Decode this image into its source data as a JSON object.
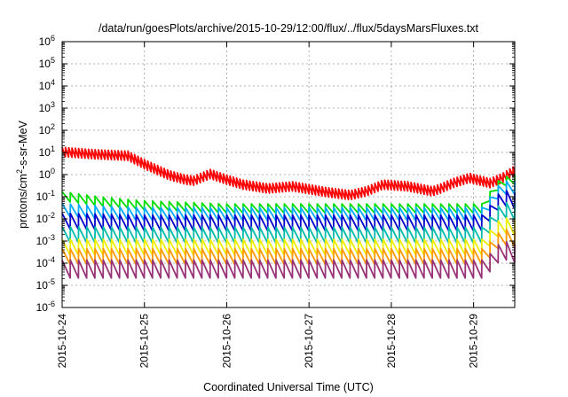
{
  "chart_data": {
    "type": "line",
    "title": "/data/run/goesPlots/archive/2015-10-29/12:00/flux/../flux/5daysMarsFluxes.txt",
    "xlabel": "Coordinated Universal Time (UTC)",
    "ylabel_base": "protons/cm",
    "ylabel_sup": "2",
    "ylabel_tail": "-s-sr-MeV",
    "y_scale": "log",
    "ylim": [
      1e-06,
      1000000.0
    ],
    "y_ticks": [
      {
        "base": "10",
        "exp": "-6",
        "value": 1e-06
      },
      {
        "base": "10",
        "exp": "-5",
        "value": 1e-05
      },
      {
        "base": "10",
        "exp": "-4",
        "value": 0.0001
      },
      {
        "base": "10",
        "exp": "-3",
        "value": 0.001
      },
      {
        "base": "10",
        "exp": "-2",
        "value": 0.01
      },
      {
        "base": "10",
        "exp": "-1",
        "value": 0.1
      },
      {
        "base": "10",
        "exp": "0",
        "value": 1
      },
      {
        "base": "10",
        "exp": "1",
        "value": 10
      },
      {
        "base": "10",
        "exp": "2",
        "value": 100
      },
      {
        "base": "10",
        "exp": "3",
        "value": 1000
      },
      {
        "base": "10",
        "exp": "4",
        "value": 10000
      },
      {
        "base": "10",
        "exp": "5",
        "value": 100000
      },
      {
        "base": "10",
        "exp": "6",
        "value": 1000000
      }
    ],
    "x_unit": "days since 2015-10-24 00:00 UTC",
    "xlim": [
      0,
      5.5
    ],
    "x_ticks": [
      {
        "label": "2015-10-24",
        "value": 0
      },
      {
        "label": "2015-10-25",
        "value": 1
      },
      {
        "label": "2015-10-26",
        "value": 2
      },
      {
        "label": "2015-10-27",
        "value": 3
      },
      {
        "label": "2015-10-28",
        "value": 4
      },
      {
        "label": "2015-10-29",
        "value": 5
      }
    ],
    "grid": true,
    "series": [
      {
        "color": "#ff0000",
        "step": 0.04,
        "sawtooth_ratio": 1.9,
        "envelope": [
          [
            0,
            9
          ],
          [
            0.4,
            7
          ],
          [
            0.8,
            6
          ],
          [
            1.0,
            2.5
          ],
          [
            1.3,
            0.8
          ],
          [
            1.5,
            0.5
          ],
          [
            1.6,
            0.45
          ],
          [
            1.8,
            0.9
          ],
          [
            2.0,
            0.5
          ],
          [
            2.2,
            0.3
          ],
          [
            2.5,
            0.2
          ],
          [
            2.8,
            0.25
          ],
          [
            3.2,
            0.14
          ],
          [
            3.5,
            0.1
          ],
          [
            3.7,
            0.15
          ],
          [
            3.9,
            0.3
          ],
          [
            4.2,
            0.25
          ],
          [
            4.5,
            0.15
          ],
          [
            4.6,
            0.2
          ],
          [
            4.75,
            0.35
          ],
          [
            4.95,
            0.6
          ],
          [
            5.2,
            0.35
          ],
          [
            5.35,
            0.6
          ],
          [
            5.5,
            1.3
          ]
        ]
      },
      {
        "color": "#00dd00",
        "step": 0.1,
        "sawtooth_ratio": 1.9,
        "envelope": [
          [
            0,
            0.09
          ],
          [
            0.5,
            0.05
          ],
          [
            1.0,
            0.035
          ],
          [
            2.0,
            0.025
          ],
          [
            3.0,
            0.025
          ],
          [
            4.0,
            0.025
          ],
          [
            5.0,
            0.025
          ],
          [
            5.15,
            0.025
          ],
          [
            5.22,
            0.15
          ],
          [
            5.35,
            0.4
          ],
          [
            5.5,
            0.5
          ]
        ]
      },
      {
        "color": "#00aaff",
        "step": 0.1,
        "sawtooth_ratio": 2.5,
        "envelope": [
          [
            0,
            0.02
          ],
          [
            0.5,
            0.015
          ],
          [
            1.0,
            0.013
          ],
          [
            2.0,
            0.013
          ],
          [
            3.0,
            0.013
          ],
          [
            4.0,
            0.013
          ],
          [
            5.0,
            0.013
          ],
          [
            5.15,
            0.013
          ],
          [
            5.22,
            0.06
          ],
          [
            5.35,
            0.2
          ],
          [
            5.5,
            0.2
          ]
        ]
      },
      {
        "color": "#0000cc",
        "step": 0.1,
        "sawtooth_ratio": 3.0,
        "envelope": [
          [
            0,
            0.006
          ],
          [
            1.0,
            0.005
          ],
          [
            2.0,
            0.005
          ],
          [
            3.0,
            0.005
          ],
          [
            4.0,
            0.005
          ],
          [
            5.0,
            0.005
          ],
          [
            5.15,
            0.005
          ],
          [
            5.22,
            0.02
          ],
          [
            5.35,
            0.07
          ],
          [
            5.5,
            0.05
          ]
        ]
      },
      {
        "color": "#00bbaa",
        "step": 0.1,
        "sawtooth_ratio": 3.0,
        "envelope": [
          [
            0,
            0.0015
          ],
          [
            1.0,
            0.0014
          ],
          [
            2.0,
            0.0014
          ],
          [
            3.0,
            0.0014
          ],
          [
            4.0,
            0.0014
          ],
          [
            5.0,
            0.0014
          ],
          [
            5.15,
            0.0014
          ],
          [
            5.22,
            0.006
          ],
          [
            5.35,
            0.02
          ],
          [
            5.5,
            0.015
          ]
        ]
      },
      {
        "color": "#eeee00",
        "step": 0.1,
        "sawtooth_ratio": 3.0,
        "envelope": [
          [
            0,
            0.0004
          ],
          [
            1.0,
            0.0004
          ],
          [
            2.0,
            0.0004
          ],
          [
            3.0,
            0.0004
          ],
          [
            4.0,
            0.0004
          ],
          [
            5.0,
            0.0004
          ],
          [
            5.15,
            0.0004
          ],
          [
            5.22,
            0.0015
          ],
          [
            5.35,
            0.004
          ],
          [
            5.5,
            0.003
          ]
        ]
      },
      {
        "color": "#ff9900",
        "step": 0.1,
        "sawtooth_ratio": 3.0,
        "envelope": [
          [
            0,
            0.00015
          ],
          [
            1.0,
            0.00015
          ],
          [
            2.0,
            0.00015
          ],
          [
            3.0,
            0.00015
          ],
          [
            4.0,
            0.00015
          ],
          [
            5.0,
            0.00015
          ],
          [
            5.15,
            0.00015
          ],
          [
            5.22,
            0.0004
          ],
          [
            5.35,
            0.0012
          ],
          [
            5.5,
            0.0009
          ]
        ]
      },
      {
        "color": "#993377",
        "step": 0.1,
        "sawtooth_ratio": 3.5,
        "envelope": [
          [
            0,
            4e-05
          ],
          [
            1.0,
            4e-05
          ],
          [
            2.0,
            4e-05
          ],
          [
            3.0,
            4e-05
          ],
          [
            4.0,
            4e-05
          ],
          [
            5.0,
            4e-05
          ],
          [
            5.15,
            4e-05
          ],
          [
            5.22,
            0.0001
          ],
          [
            5.35,
            0.0003
          ],
          [
            5.5,
            0.0002
          ]
        ]
      }
    ]
  }
}
